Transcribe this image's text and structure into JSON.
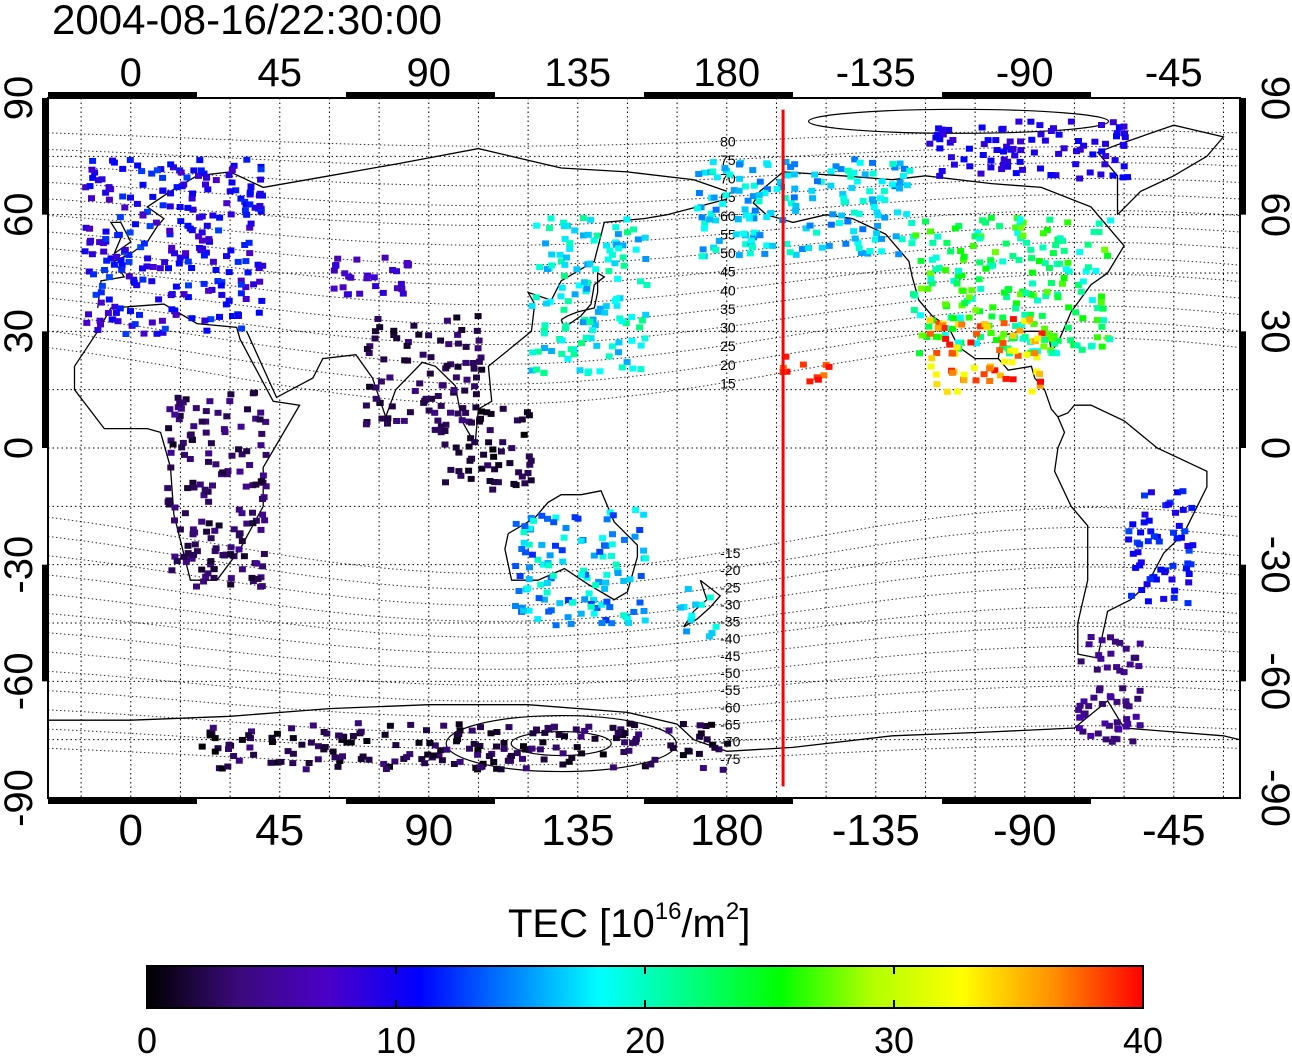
{
  "map": {
    "timestamp": "2004-08-16/22:30:00",
    "top_lon_labels": [
      "0",
      "45",
      "90",
      "135",
      "180",
      "-135",
      "-90",
      "-45"
    ],
    "bottom_lon_labels": [
      "0",
      "45",
      "90",
      "135",
      "180",
      "-135",
      "-90",
      "-45"
    ],
    "left_lat_labels": [
      "90",
      "60",
      "30",
      "0",
      "-30",
      "-60",
      "-90"
    ],
    "right_lat_labels": [
      "90",
      "60",
      "30",
      "0",
      "-30",
      "-60",
      "-90"
    ],
    "lon_range": [
      -25,
      335
    ],
    "lat_range": [
      -90,
      90
    ],
    "grid_step_deg": 15,
    "meridian_marker": {
      "lon": 197,
      "color": "#ff0000"
    },
    "contour_labels": [
      "80",
      "75",
      "70",
      "65",
      "60",
      "55",
      "50",
      "45",
      "40",
      "35",
      "30",
      "25",
      "20",
      "15",
      "-15",
      "-20",
      "-25",
      "-30",
      "-35",
      "-40",
      "-45",
      "-50",
      "-55",
      "-60",
      "-65",
      "-70",
      "-75"
    ]
  },
  "colorbar": {
    "title_main": "TEC  [10",
    "title_exp": "16",
    "title_unit": "/m",
    "title_exp2": "2",
    "title_end": "]",
    "min": 0,
    "max": 40,
    "tick_labels": [
      "0",
      "10",
      "20",
      "30",
      "40"
    ],
    "stops": [
      "#000000",
      "#3a0a7a",
      "#4b00c8",
      "#0000ff",
      "#0080ff",
      "#00ffff",
      "#00ff80",
      "#00ff00",
      "#b0ff00",
      "#ffff00",
      "#ff9000",
      "#ff0000"
    ]
  },
  "tec_regions": [
    {
      "name": "europe",
      "lon": [
        -15,
        40
      ],
      "lat": [
        30,
        75
      ],
      "tec": [
        7,
        13
      ]
    },
    {
      "name": "central-asia",
      "lon": [
        60,
        85
      ],
      "lat": [
        40,
        50
      ],
      "tec": [
        6,
        9
      ]
    },
    {
      "name": "east-asia",
      "lon": [
        120,
        155
      ],
      "lat": [
        20,
        60
      ],
      "tec": [
        15,
        22
      ]
    },
    {
      "name": "india",
      "lon": [
        70,
        105
      ],
      "lat": [
        5,
        35
      ],
      "tec": [
        1,
        4
      ]
    },
    {
      "name": "se-asia",
      "lon": [
        90,
        120
      ],
      "lat": [
        -10,
        12
      ],
      "tec": [
        0,
        3
      ]
    },
    {
      "name": "africa",
      "lon": [
        10,
        40
      ],
      "lat": [
        -35,
        15
      ],
      "tec": [
        1,
        5
      ]
    },
    {
      "name": "australia",
      "lon": [
        115,
        155
      ],
      "lat": [
        -45,
        -15
      ],
      "tec": [
        12,
        20
      ]
    },
    {
      "name": "new-zealand",
      "lon": [
        165,
        180
      ],
      "lat": [
        -50,
        -35
      ],
      "tec": [
        15,
        20
      ]
    },
    {
      "name": "pacific-north",
      "lon": [
        170,
        235
      ],
      "lat": [
        50,
        75
      ],
      "tec": [
        14,
        20
      ]
    },
    {
      "name": "north-america",
      "lon": [
        235,
        295
      ],
      "lat": [
        25,
        60
      ],
      "tec": [
        18,
        28
      ]
    },
    {
      "name": "mexico",
      "lon": [
        240,
        275
      ],
      "lat": [
        15,
        35
      ],
      "tec": [
        32,
        40
      ]
    },
    {
      "name": "hawaii",
      "lon": [
        195,
        210
      ],
      "lat": [
        17,
        25
      ],
      "tec": [
        36,
        40
      ]
    },
    {
      "name": "south-america-east",
      "lon": [
        300,
        320
      ],
      "lat": [
        -40,
        -10
      ],
      "tec": [
        9,
        13
      ]
    },
    {
      "name": "south-america-south",
      "lon": [
        285,
        305
      ],
      "lat": [
        -75,
        -45
      ],
      "tec": [
        3,
        6
      ]
    },
    {
      "name": "antarctica",
      "lon": [
        20,
        180
      ],
      "lat": [
        -82,
        -70
      ],
      "tec": [
        0,
        4
      ]
    },
    {
      "name": "arctic",
      "lon": [
        240,
        300
      ],
      "lat": [
        70,
        85
      ],
      "tec": [
        8,
        11
      ]
    }
  ]
}
